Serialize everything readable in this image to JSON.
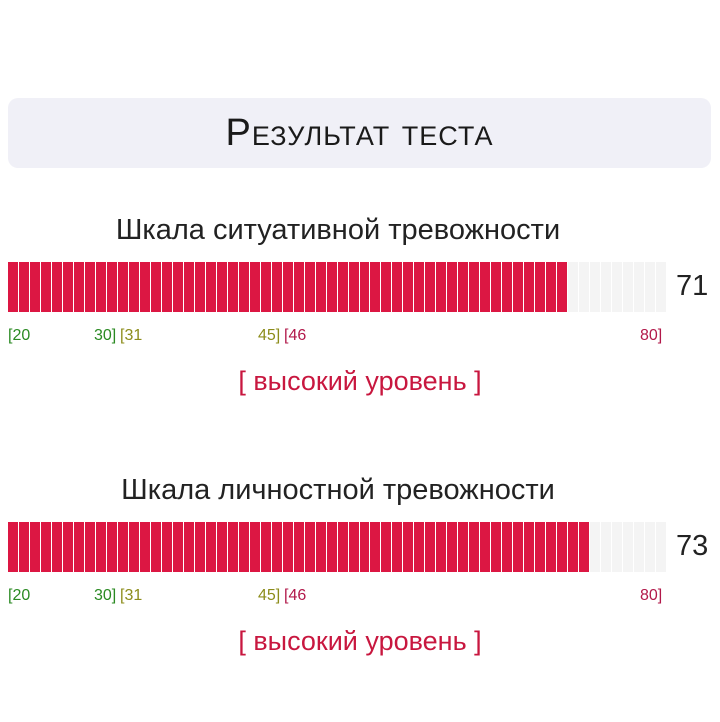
{
  "header": {
    "title": "Результат теста"
  },
  "scales": [
    {
      "title": "Шкала ситуативной тревожности",
      "score": "71",
      "score_value": 71,
      "min": 20,
      "max": 80,
      "ticks": [
        "[20",
        "30]",
        "[31",
        "45]",
        "[46",
        "80]"
      ],
      "level": "[ высокий уровень ]"
    },
    {
      "title": "Шкала личностной тревожности",
      "score": "73",
      "score_value": 73,
      "min": 20,
      "max": 80,
      "ticks": [
        "[20",
        "30]",
        "[31",
        "45]",
        "[46",
        "80]"
      ],
      "level": "[ высокий уровень ]"
    }
  ],
  "colors": {
    "bar_filled": "#dc1743",
    "bar_empty": "#f4f4f4",
    "low_range": "#2a8a22",
    "mid_range": "#8c8c1a",
    "high_range": "#b2184a",
    "level_text": "#c8173f"
  }
}
